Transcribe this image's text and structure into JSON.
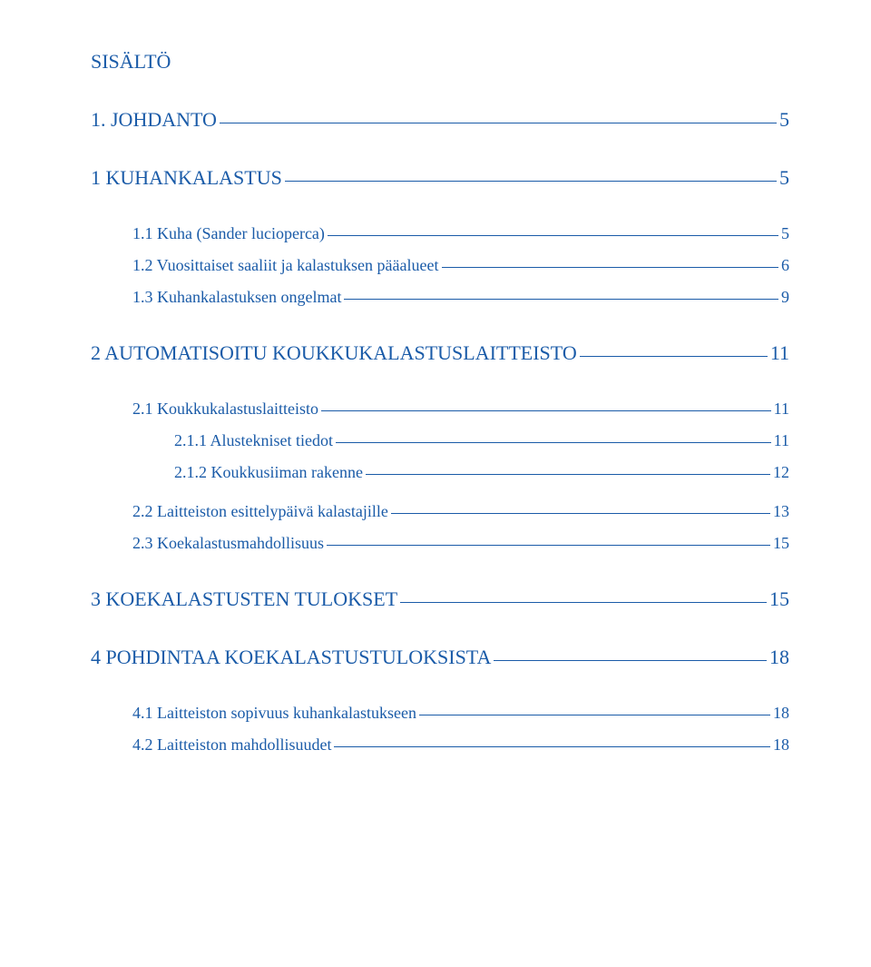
{
  "title": "SISÄLTÖ",
  "colors": {
    "link": "#1a5ba8",
    "background": "#ffffff"
  },
  "entries": [
    {
      "level": "h1",
      "label": "1. JOHDANTO",
      "page": "5"
    },
    {
      "level": "h1",
      "label": "1 KUHANKALASTUS",
      "page": "5"
    },
    {
      "level": "h2",
      "label": "1.1 Kuha (Sander lucioperca)",
      "page": "5"
    },
    {
      "level": "h2",
      "label": "1.2 Vuosittaiset saaliit ja kalastuksen pääalueet",
      "page": "6"
    },
    {
      "level": "h2",
      "label": "1.3 Kuhankalastuksen ongelmat",
      "page": "9"
    },
    {
      "level": "spacer-after-sub"
    },
    {
      "level": "h1",
      "label": "2 AUTOMATISOITU KOUKKUKALASTUSLAITTEISTO",
      "page": "11"
    },
    {
      "level": "h2",
      "label": "2.1 Koukkukalastuslaitteisto",
      "page": "11"
    },
    {
      "level": "h3",
      "label": "2.1.1 Alustekniset tiedot",
      "page": "11"
    },
    {
      "level": "h3",
      "label": "2.1.2 Koukkusiiman rakenne",
      "page": "12"
    },
    {
      "level": "spacer-small"
    },
    {
      "level": "h2",
      "label": "2.2 Laitteiston esittelypäivä kalastajille",
      "page": "13"
    },
    {
      "level": "h2",
      "label": "2.3 Koekalastusmahdollisuus",
      "page": "15"
    },
    {
      "level": "spacer-after-sub"
    },
    {
      "level": "h1",
      "label": "3 KOEKALASTUSTEN TULOKSET",
      "page": "15"
    },
    {
      "level": "h1",
      "label": "4 POHDINTAA KOEKALASTUSTULOKSISTA",
      "page": "18"
    },
    {
      "level": "h2",
      "label": "4.1 Laitteiston sopivuus kuhankalastukseen",
      "page": "18"
    },
    {
      "level": "h2",
      "label": "4.2 Laitteiston mahdollisuudet",
      "page": "18"
    }
  ]
}
